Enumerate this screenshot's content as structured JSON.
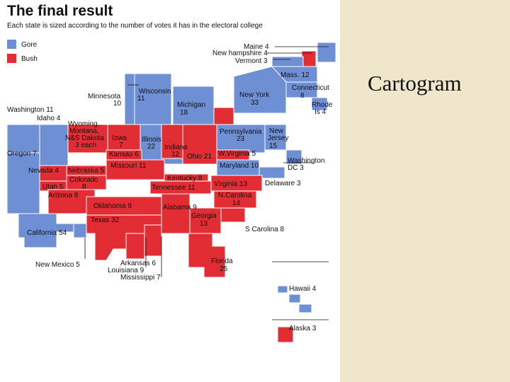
{
  "header": {
    "title": "The final result",
    "subtitle": "Each state is sized according to the number of votes it has in the electoral college"
  },
  "legend": [
    {
      "label": "Gore",
      "color": "#6f8fd4"
    },
    {
      "label": "Bush",
      "color": "#e12d33"
    }
  ],
  "slide_title": "Cartogram",
  "colors": {
    "gore": "#6f8fd4",
    "bush": "#e12d33",
    "side_panel": "#efe6cc"
  },
  "labels": {
    "maine": "Maine 4",
    "new_hampshire": "New hampshire 4",
    "vermont": "Vermont 3",
    "massachusetts": "Mass. 12",
    "connecticut": "Connecticut",
    "connecticut_votes": "8",
    "new_york": "New York",
    "new_york_votes": "33",
    "rhode_island": "Rhode",
    "rhode_island_2": "Is 4",
    "minnesota": "Minnesota",
    "minnesota_votes": "10",
    "wisconsin": "Wisconsin",
    "wisconsin_votes": "11",
    "michigan": "Michigan",
    "michigan_votes": "18",
    "washington": "Washington 11",
    "idaho": "Idaho 4",
    "wyoming": "Wyoming,",
    "montana": "Montana,",
    "nsdakota": "N&S Dakota",
    "three_each": "3 each",
    "iowa": "Iowa",
    "iowa_votes": "7",
    "illinois": "Illinois",
    "illinois_votes": "22",
    "indiana": "Indiana",
    "indiana_votes": "12",
    "pennsylvania": "Pennsylvania",
    "pennsylvania_votes": "23",
    "new_jersey": "New",
    "new_jersey_2": "Jersey",
    "new_jersey_votes": "15",
    "oregon": "Oregon 7",
    "kansas": "Kansas 6",
    "ohio": "Ohio 21",
    "west_virginia": "W.Virginia 5",
    "washington_dc": "Washington",
    "washington_dc_2": "DC 3",
    "nevada": "Nevada 4",
    "nebraska": "Nebraska 5",
    "missouri": "Missouri 11",
    "maryland": "Maryland 10",
    "colorado": "Colorado",
    "colorado_votes": "8",
    "kentucky": "Kentucky 8",
    "delaware": "Delaware 3",
    "utah": "Utah 5",
    "tennessee": "Tennessee 11",
    "virginia": "Virginia 13",
    "north_carolina": "N.Carolina",
    "north_carolina_votes": "14",
    "arizona": "Arizona 8",
    "oklahoma": "Oklahoma 8",
    "alabama": "Alabama 9",
    "georgia": "Georgia",
    "georgia_votes": "13",
    "texas": "Texas 32",
    "south_carolina": "S Carolina 8",
    "california": "California 54",
    "new_mexico": "New Mexico 5",
    "arkansas": "Arkansas 6",
    "louisiana": "Louisiana 9",
    "mississippi": "Mississippi 7",
    "florida": "Florida",
    "florida_votes": "25",
    "hawaii": "Hawaii 4",
    "alaska": "Alaska 3"
  }
}
